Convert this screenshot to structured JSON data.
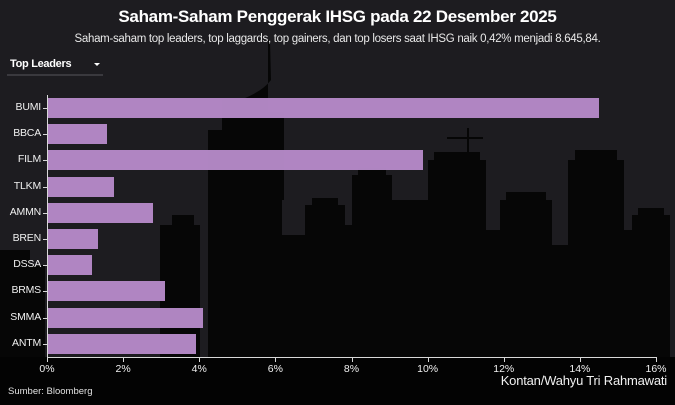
{
  "header": {
    "title": "Saham-Saham Penggerak IHSG pada 22 Desember 2025",
    "subtitle": "Saham-saham top leaders, top laggards, top gainers, dan top losers saat IHSG naik 0,42% menjadi 8.645,84."
  },
  "dropdown": {
    "selected": "Top Leaders",
    "icon": "caret-down-icon"
  },
  "colors": {
    "background": "#1d1c20",
    "bar": "#b589c7",
    "axis": "#d8d8d8",
    "skyline": "#050505"
  },
  "footer": {
    "source": "Sumber: Bloomberg",
    "credit": "Kontan/Wahyu Tri Rahmawati"
  },
  "chart_data": {
    "type": "bar",
    "orientation": "horizontal",
    "title": "Saham-Saham Penggerak IHSG pada 22 Desember 2025",
    "subtitle": "Saham-saham top leaders, top laggards, top gainers, dan top losers saat IHSG naik 0,42% menjadi 8.645,84.",
    "categories": [
      "BUMI",
      "BBCA",
      "FILM",
      "TLKM",
      "AMMN",
      "BREN",
      "DSSA",
      "BRMS",
      "SMMA",
      "ANTM"
    ],
    "values": [
      14.5,
      1.57,
      9.88,
      1.76,
      2.78,
      1.34,
      1.18,
      3.09,
      4.09,
      3.91
    ],
    "unit": "%",
    "xlabel": "",
    "ylabel": "",
    "xlim": [
      0,
      16
    ],
    "xticks": [
      "0%",
      "2%",
      "4%",
      "6%",
      "8%",
      "10%",
      "12%",
      "14%",
      "16%"
    ],
    "grid": false,
    "legend": null
  }
}
